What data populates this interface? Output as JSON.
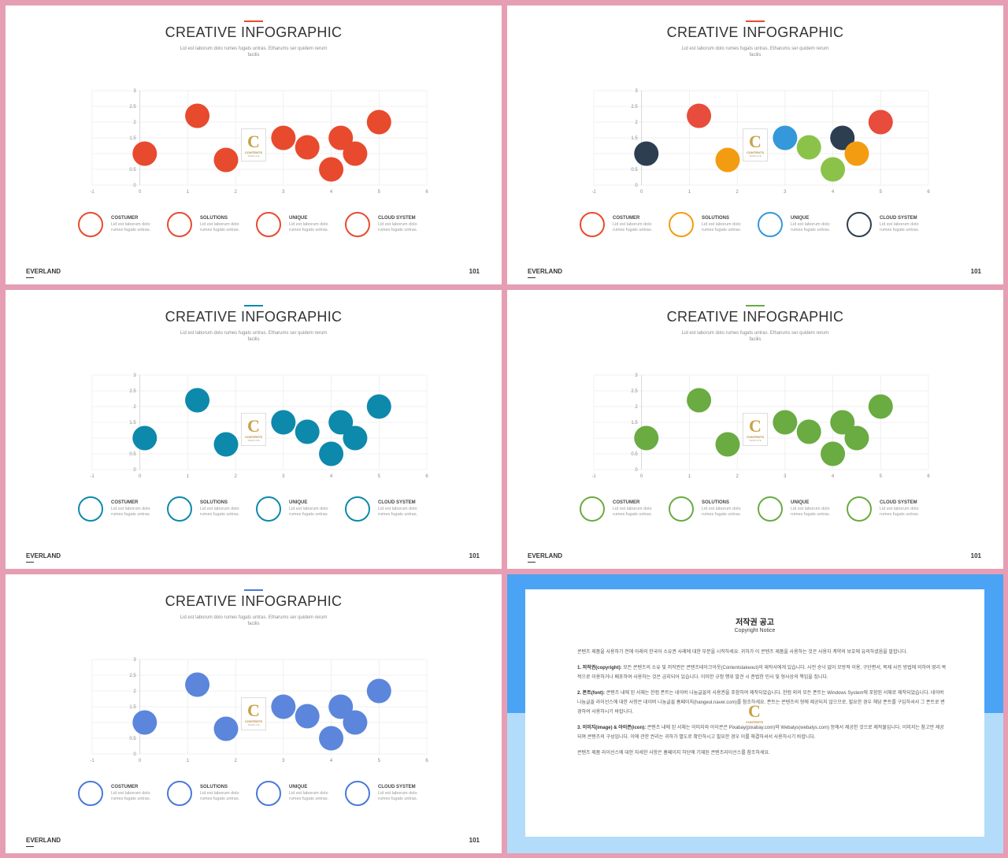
{
  "slides": [
    {
      "accent": "#e84a2e",
      "ring_colors": [
        "#e84a2e",
        "#e84a2e",
        "#e84a2e",
        "#e84a2e"
      ],
      "bubble_colors": [
        "#e84a2e",
        "#e84a2e",
        "#e84a2e",
        "#e84a2e",
        "#e84a2e",
        "#e84a2e",
        "#e84a2e",
        "#e84a2e",
        "#e84a2e"
      ]
    },
    {
      "accent": "#e84a2e",
      "ring_colors": [
        "#e84a2e",
        "#f39c12",
        "#3498db",
        "#2c3e50"
      ],
      "bubble_colors": [
        "#2c3e50",
        "#e74c3c",
        "#f39c12",
        "#3498db",
        "#8bc34a",
        "#2c3e50",
        "#f39c12",
        "#8bc34a",
        "#e74c3c"
      ]
    },
    {
      "accent": "#0d89ac",
      "ring_colors": [
        "#0d89ac",
        "#0d89ac",
        "#0d89ac",
        "#0d89ac"
      ],
      "bubble_colors": [
        "#0d89ac",
        "#0d89ac",
        "#0d89ac",
        "#0d89ac",
        "#0d89ac",
        "#0d89ac",
        "#0d89ac",
        "#0d89ac",
        "#0d89ac"
      ]
    },
    {
      "accent": "#6aab42",
      "ring_colors": [
        "#6aab42",
        "#6aab42",
        "#6aab42",
        "#6aab42"
      ],
      "bubble_colors": [
        "#6aab42",
        "#6aab42",
        "#6aab42",
        "#6aab42",
        "#6aab42",
        "#6aab42",
        "#6aab42",
        "#6aab42",
        "#6aab42"
      ]
    },
    {
      "accent": "#4a79d8",
      "ring_colors": [
        "#4a79d8",
        "#4a79d8",
        "#4a79d8",
        "#4a79d8"
      ],
      "bubble_colors": [
        "#5b86dc",
        "#5b86dc",
        "#5b86dc",
        "#5b86dc",
        "#5b86dc",
        "#5b86dc",
        "#5b86dc",
        "#5b86dc",
        "#5b86dc"
      ]
    }
  ],
  "content": {
    "title": "CREATIVE INFOGRAPHIC",
    "subtitle": "Lid est laborum dolo rumes fugats untras. Etharums ser quidem rerum facilis",
    "legend": [
      {
        "name": "COSTUMER",
        "desc": "Lid est laborum dolo rumes fugats untras."
      },
      {
        "name": "SOLUTIONS",
        "desc": "Lid est laborum dolo rumes fugats untras."
      },
      {
        "name": "UNIQUE",
        "desc": "Lid est laborum dolo rumes fugats untras."
      },
      {
        "name": "CLOUD SYSTEM",
        "desc": "Lid est laborum dolo rumes fugats untras."
      }
    ],
    "brand": "EVERLAND",
    "page_number": "101",
    "logo": {
      "letter": "C",
      "text": "CONTENTS",
      "tag": "TEMPLATE"
    }
  },
  "chart_data": {
    "type": "scatter",
    "xlim": [
      -1,
      6
    ],
    "ylim": [
      0,
      3
    ],
    "x_ticks": [
      "-1",
      "0",
      "1",
      "2",
      "3",
      "4",
      "5",
      "6"
    ],
    "y_ticks": [
      "0",
      "0.5",
      "1",
      "1.5",
      "2",
      "2.5",
      "3"
    ],
    "points": [
      {
        "x": 0.1,
        "y": 1.0
      },
      {
        "x": 1.2,
        "y": 2.2
      },
      {
        "x": 1.8,
        "y": 0.8
      },
      {
        "x": 3.0,
        "y": 1.5
      },
      {
        "x": 3.5,
        "y": 1.2
      },
      {
        "x": 4.2,
        "y": 1.5
      },
      {
        "x": 4.5,
        "y": 1.0
      },
      {
        "x": 4.0,
        "y": 0.5
      },
      {
        "x": 5.0,
        "y": 2.0
      }
    ],
    "grid": true
  },
  "notice": {
    "title": "저작권 공고",
    "subtitle": "Copyright Notice",
    "paragraphs": [
      {
        "head": "",
        "text": "콘텐츠 제품을 사용하기 전에 아래의 한국어 소유권 사례에 대한 부분을 시작하세요. 귀하가 이 콘텐츠 제품을 사용하는 것은 사용자 계약의 보호에 유의하셨음을 말합니다."
      },
      {
        "head": "1. 저작권(copyright):",
        "text": " 모든 콘텐츠의 소유 및 저작권은 콘텐츠테이크아웃(Contentstakeout)의 재작사에게 있습니다. 사전 승낙 없이 모방적 이용, 구단편서, 복제 사진 방법에 의하여 영리 목적으로 이용하거나 배포하여 사용하는 것은 금지되어 있습니다. 이러한 규정 행위 발견 시 준법한 민사 및 형사상의 책임을 집니다."
      },
      {
        "head": "2. 폰트(font):",
        "text": " 콘텐츠 내에 된 서체는 한컴 폰트는 네이버 나눔글꼴의 사용권을 포함하여 제작되었습니다. 한컴 외의 모든 폰트는 Windows System에 포함된 서체로 제작되었습니다. 네이버 나눔글꼴 라이선스에 대한 사항은 네이버 나눔글꼴 홈페이지(hangeul.naver.com)를 참조하세요. 폰트는 콘텐츠의 형에 제공되지 않으므로, 필요한 경우 해당 폰트를 구입하셔서 그 폰트로 변경하여 사용하시기 바랍니다."
      },
      {
        "head": "3. 이미지(image) & 아이콘(icon):",
        "text": " 콘텐츠 내에 된 서체는 이미지와 아이콘은 Pixabay(pixabay.com)와 Webalys(webalys.com) 등에서 제공한 것으로 제작물입니다. 이미지는 참고만 제공되며 콘텐츠의 구성입니다. 이에 관한 권리는 귀하가 별도로 확인하시고 필요한 경우 이를 해결하셔서 사용하시기 바랍니다."
      },
      {
        "head": "",
        "text": "콘텐츠 제품 라이선스에 대한 자세한 사항은 홈페이지 하단에 기재된 콘텐츠라이선스를 참조하세요."
      }
    ]
  }
}
